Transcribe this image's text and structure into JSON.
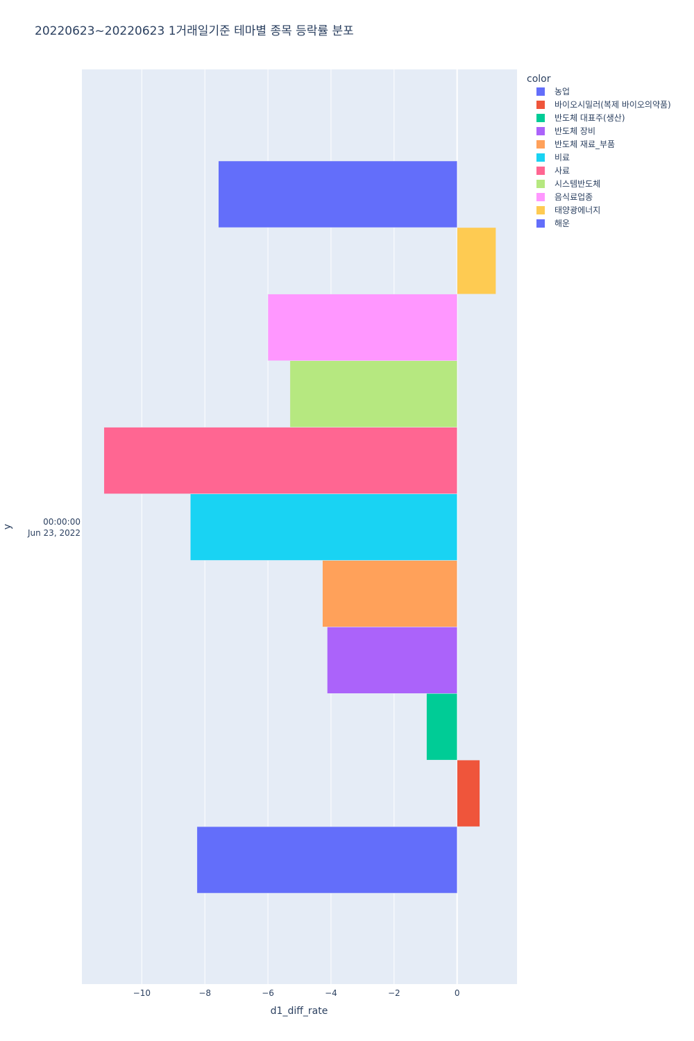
{
  "chart_data": {
    "type": "bar",
    "orientation": "horizontal",
    "barmode": "group",
    "title": "20220623~20220623 1거래일기준 테마별 종목 등락률 분포",
    "xlabel": "d1_diff_rate",
    "ylabel": "y",
    "y_category": {
      "time": "00:00:00",
      "date": "Jun 23, 2022"
    },
    "xlim": [
      -11.9,
      1.9
    ],
    "x_ticks": [
      -10,
      -8,
      -6,
      -4,
      -2,
      0
    ],
    "x_tick_labels": [
      "−10",
      "−8",
      "−6",
      "−4",
      "−2",
      "0"
    ],
    "grid": true,
    "legend_title": "color",
    "legend_position": "top-right",
    "series": [
      {
        "name": "농업",
        "value": -8.25,
        "color": "#636efa"
      },
      {
        "name": "바이오시밀러(복제 바이오의약품)",
        "value": 0.72,
        "color": "#EF553B"
      },
      {
        "name": "반도체 대표주(생산)",
        "value": -0.97,
        "color": "#00cc96"
      },
      {
        "name": "반도체 장비",
        "value": -4.12,
        "color": "#ab63fa"
      },
      {
        "name": "반도체 재료_부품",
        "value": -4.27,
        "color": "#FFA15A"
      },
      {
        "name": "비료",
        "value": -8.46,
        "color": "#19d3f3"
      },
      {
        "name": "사료",
        "value": -11.2,
        "color": "#FF6692"
      },
      {
        "name": "시스템반도체",
        "value": -5.3,
        "color": "#B6E880"
      },
      {
        "name": "음식료업종",
        "value": -6.0,
        "color": "#FF97FF"
      },
      {
        "name": "태양광에너지",
        "value": 1.23,
        "color": "#FECB52"
      },
      {
        "name": "해운",
        "value": -7.57,
        "color": "#636efa"
      }
    ]
  }
}
